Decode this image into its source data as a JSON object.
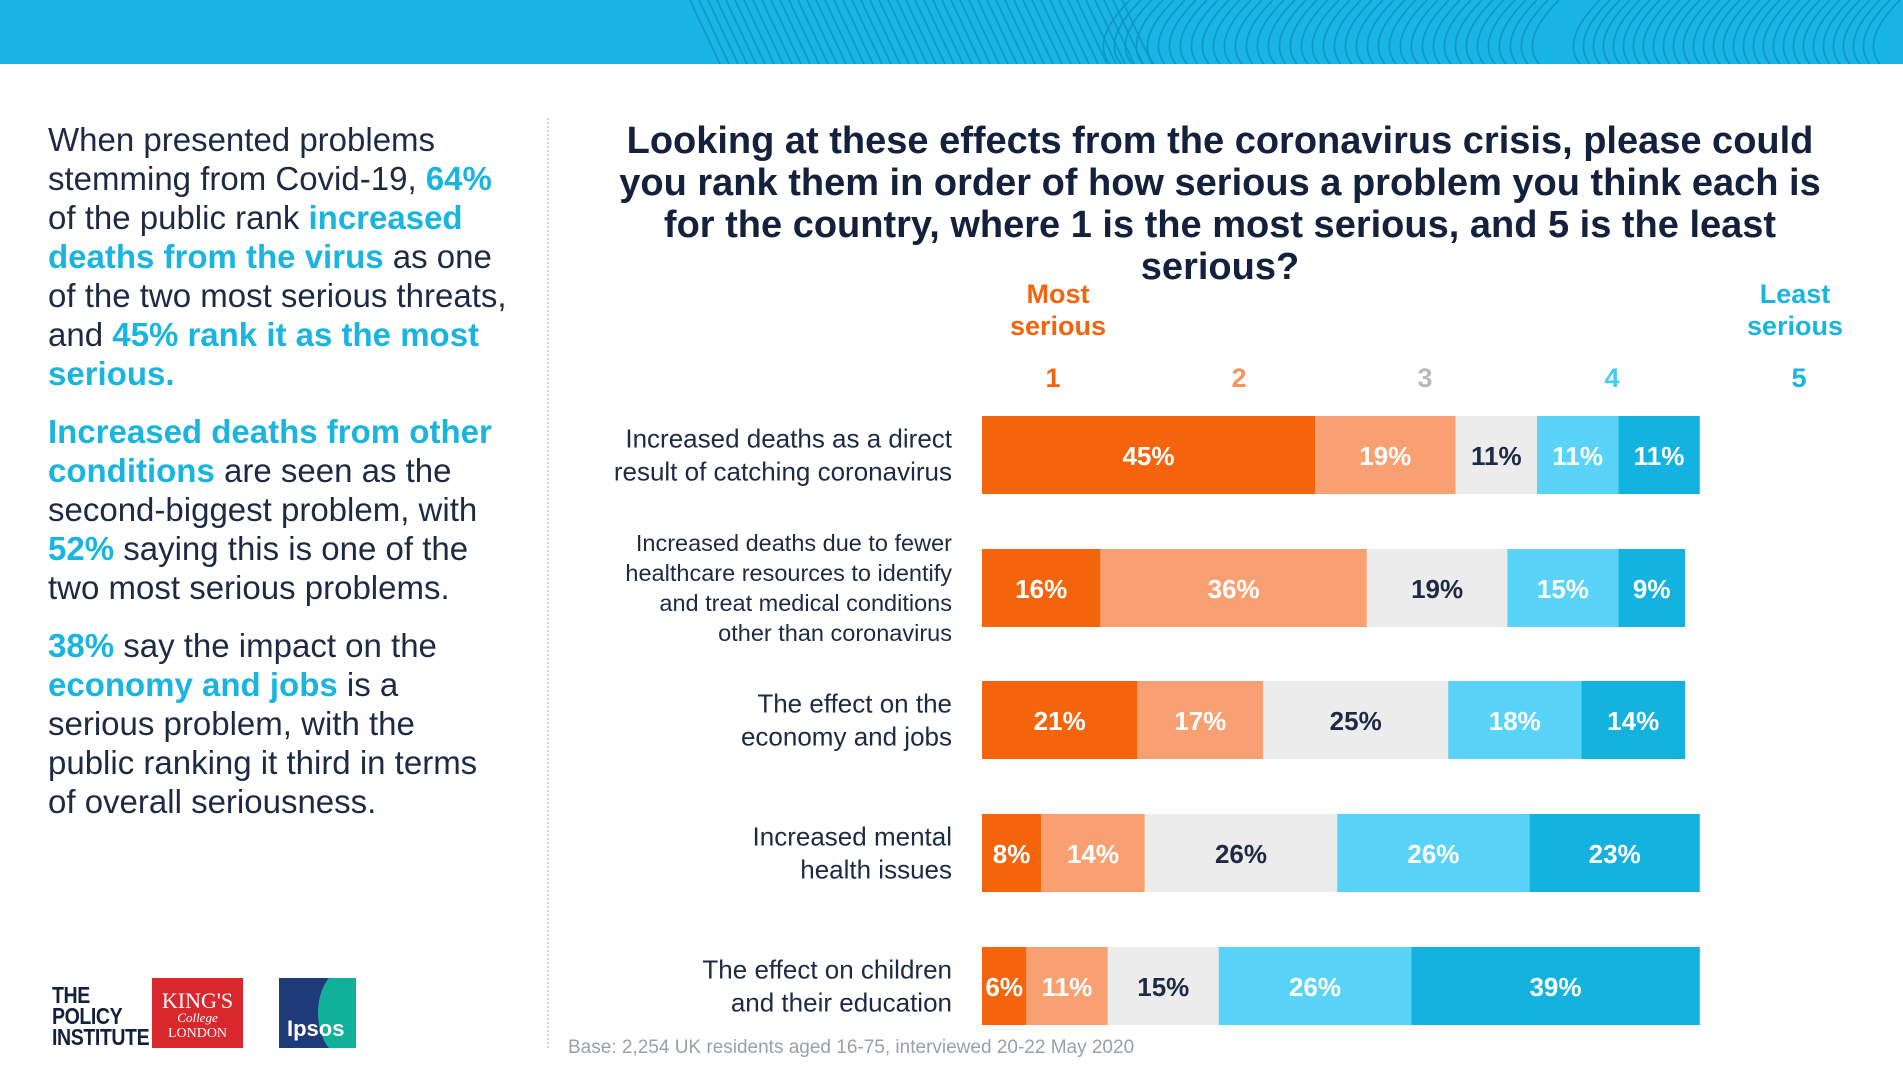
{
  "left_text": {
    "p1": {
      "t1": "When presented problems stemming from Covid-19, ",
      "h1": "64%",
      "t2": " of the public rank ",
      "h2": "increased deaths from the virus",
      "t3": " as one of the two most serious threats, and ",
      "h3": "45% rank it as the most serious."
    },
    "p2": {
      "h1": "Increased deaths from other conditions",
      "t1": " are seen as the second-biggest problem, with ",
      "h2": "52%",
      "t2": " saying this is one of the two most serious problems."
    },
    "p3": {
      "h1": "38%",
      "t1": " say the impact on the ",
      "h2": "economy and jobs",
      "t2": " is a serious problem, with the public ranking it third in terms of overall seriousness."
    }
  },
  "logos": {
    "policy_institute": [
      "THE",
      "POLICY",
      "INSTITUTE"
    ],
    "kings": [
      "KING'S",
      "College",
      "LONDON"
    ],
    "ipsos": "Ipsos"
  },
  "chart_data": {
    "type": "bar",
    "orientation": "horizontal",
    "stacked": true,
    "title": "Looking at these effects from the coronavirus crisis, please could you rank them in order of how serious a problem you think each is for the country, where 1 is the most serious, and 5 is the least serious?",
    "scale_label_most": "Most serious",
    "scale_label_least": "Least serious",
    "ranks": [
      "1",
      "2",
      "3",
      "4",
      "5"
    ],
    "categories": [
      "Increased deaths as a direct result of catching coronavirus",
      "Increased deaths due to fewer healthcare resources to identify and treat medical conditions other than coronavirus",
      "The effect on the economy and jobs",
      "Increased mental health issues",
      "The effect on children and their education"
    ],
    "category_lines": [
      [
        "Increased deaths as a direct",
        "result of catching coronavirus"
      ],
      [
        "Increased deaths due to fewer",
        "healthcare resources to identify",
        "and treat medical conditions",
        "other than coronavirus"
      ],
      [
        "The effect on the",
        "economy and jobs"
      ],
      [
        "Increased mental",
        "health issues"
      ],
      [
        "The effect on children",
        "and their education"
      ]
    ],
    "series": [
      {
        "name": "1",
        "color": "#f4640c",
        "label_color": "#ffffff",
        "values": [
          45,
          16,
          21,
          8,
          6
        ]
      },
      {
        "name": "2",
        "color": "#f9a073",
        "label_color": "#ffffff",
        "values": [
          19,
          36,
          17,
          14,
          11
        ]
      },
      {
        "name": "3",
        "color": "#ececec",
        "label_color": "#1d2a44",
        "values": [
          11,
          19,
          25,
          26,
          15
        ]
      },
      {
        "name": "4",
        "color": "#59d4f8",
        "label_color": "#ffffff",
        "values": [
          11,
          15,
          18,
          26,
          26
        ]
      },
      {
        "name": "5",
        "color": "#14b3df",
        "label_color": "#ffffff",
        "values": [
          11,
          9,
          14,
          23,
          39
        ]
      }
    ],
    "value_suffix": "%",
    "rank_colors": [
      "#f0650e",
      "#f8955f",
      "#b9b9b9",
      "#44ccef",
      "#1ab5df"
    ],
    "legend": "rank numbers above columns",
    "base_note": "Base: 2,254 UK residents aged 16-75, interviewed 20-22 May 2020"
  }
}
